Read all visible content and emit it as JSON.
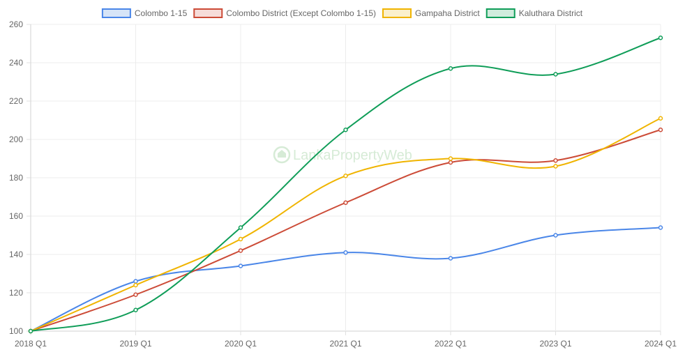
{
  "watermark": "LankaPropertyWeb",
  "chart_data": {
    "type": "line",
    "categories": [
      "2018 Q1",
      "2019 Q1",
      "2020 Q1",
      "2021 Q1",
      "2022 Q1",
      "2023 Q1",
      "2024 Q1"
    ],
    "ylim": [
      100,
      260
    ],
    "yticks": [
      "100",
      "120",
      "140",
      "160",
      "180",
      "200",
      "220",
      "240",
      "260"
    ],
    "grid": true,
    "legend_position": "top",
    "series": [
      {
        "name": "Colombo 1-15",
        "color": "#4a86e8",
        "fill": "#d6e4f7",
        "values": [
          100,
          126,
          134,
          141,
          138,
          150,
          154
        ]
      },
      {
        "name": "Colombo District (Except Colombo 1-15)",
        "color": "#cc4b37",
        "fill": "#f6dcd9",
        "values": [
          100,
          119,
          142,
          167,
          188,
          189,
          205
        ]
      },
      {
        "name": "Gampaha District",
        "color": "#f0b400",
        "fill": "#fbf0cc",
        "values": [
          100,
          124,
          148,
          181,
          190,
          186,
          211
        ]
      },
      {
        "name": "Kaluthara District",
        "color": "#0f9d58",
        "fill": "#d0ecdd",
        "values": [
          100,
          111,
          154,
          205,
          237,
          234,
          253
        ]
      }
    ]
  }
}
